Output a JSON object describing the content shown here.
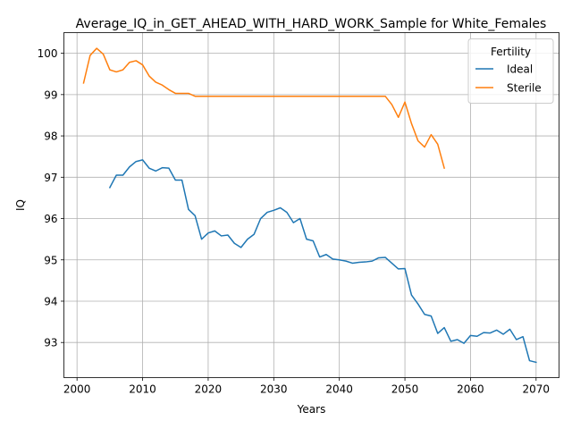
{
  "chart_data": {
    "type": "line",
    "title": "Average_IQ_in_GET_AHEAD_WITH_HARD_WORK_Sample for White_Females",
    "xlabel": "Years",
    "ylabel": "IQ",
    "xlim": [
      1998,
      2073.5
    ],
    "ylim": [
      92.15,
      100.5
    ],
    "xticks": [
      2000,
      2010,
      2020,
      2030,
      2040,
      2050,
      2060,
      2070
    ],
    "yticks": [
      93,
      94,
      95,
      96,
      97,
      98,
      99,
      100
    ],
    "grid": true,
    "legend": {
      "title": "Fertility",
      "placement": "top-right"
    },
    "series": [
      {
        "name": "Ideal",
        "color": "#1f77b4",
        "x": [
          2005,
          2006,
          2007,
          2008,
          2009,
          2010,
          2011,
          2012,
          2013,
          2014,
          2015,
          2016,
          2017,
          2018,
          2019,
          2020,
          2021,
          2022,
          2023,
          2024,
          2025,
          2026,
          2027,
          2028,
          2029,
          2030,
          2031,
          2032,
          2033,
          2034,
          2035,
          2036,
          2037,
          2038,
          2039,
          2040,
          2041,
          2042,
          2043,
          2044,
          2045,
          2046,
          2047,
          2048,
          2049,
          2050,
          2051,
          2052,
          2053,
          2054,
          2055,
          2056,
          2057,
          2058,
          2059,
          2060,
          2061,
          2062,
          2063,
          2064,
          2065,
          2066,
          2067,
          2068,
          2069,
          2070
        ],
        "y": [
          96.75,
          97.05,
          97.05,
          97.25,
          97.38,
          97.42,
          97.22,
          97.15,
          97.23,
          97.22,
          96.93,
          96.93,
          96.22,
          96.07,
          95.5,
          95.65,
          95.7,
          95.58,
          95.6,
          95.4,
          95.3,
          95.5,
          95.62,
          96.0,
          96.15,
          96.2,
          96.26,
          96.15,
          95.9,
          96.0,
          95.5,
          95.46,
          95.07,
          95.13,
          95.02,
          95.0,
          94.97,
          94.92,
          94.94,
          94.95,
          94.97,
          95.05,
          95.06,
          94.92,
          94.78,
          94.79,
          94.15,
          93.93,
          93.68,
          93.64,
          93.22,
          93.36,
          93.03,
          93.07,
          92.98,
          93.17,
          93.15,
          93.24,
          93.23,
          93.3,
          93.2,
          93.32,
          93.07,
          93.14,
          92.56,
          92.52
        ]
      },
      {
        "name": "Sterile",
        "color": "#ff7f0e",
        "x": [
          2001,
          2002,
          2003,
          2004,
          2005,
          2006,
          2007,
          2008,
          2009,
          2010,
          2011,
          2012,
          2013,
          2014,
          2015,
          2016,
          2017,
          2018,
          2019,
          2020,
          2021,
          2022,
          2023,
          2024,
          2025,
          2026,
          2027,
          2028,
          2029,
          2030,
          2031,
          2032,
          2033,
          2034,
          2035,
          2036,
          2037,
          2038,
          2039,
          2040,
          2041,
          2042,
          2043,
          2044,
          2045,
          2046,
          2047,
          2048,
          2049,
          2050,
          2051,
          2052,
          2053,
          2054,
          2055,
          2056
        ],
        "y": [
          99.28,
          99.95,
          100.12,
          99.98,
          99.6,
          99.55,
          99.6,
          99.78,
          99.82,
          99.72,
          99.45,
          99.3,
          99.23,
          99.12,
          99.03,
          99.03,
          99.03,
          98.96,
          98.96,
          98.96,
          98.96,
          98.96,
          98.96,
          98.96,
          98.96,
          98.96,
          98.96,
          98.96,
          98.96,
          98.96,
          98.96,
          98.96,
          98.96,
          98.96,
          98.96,
          98.96,
          98.96,
          98.96,
          98.96,
          98.96,
          98.96,
          98.96,
          98.96,
          98.96,
          98.96,
          98.96,
          98.96,
          98.76,
          98.45,
          98.82,
          98.3,
          97.88,
          97.73,
          98.03,
          97.8,
          97.22
        ]
      }
    ]
  }
}
